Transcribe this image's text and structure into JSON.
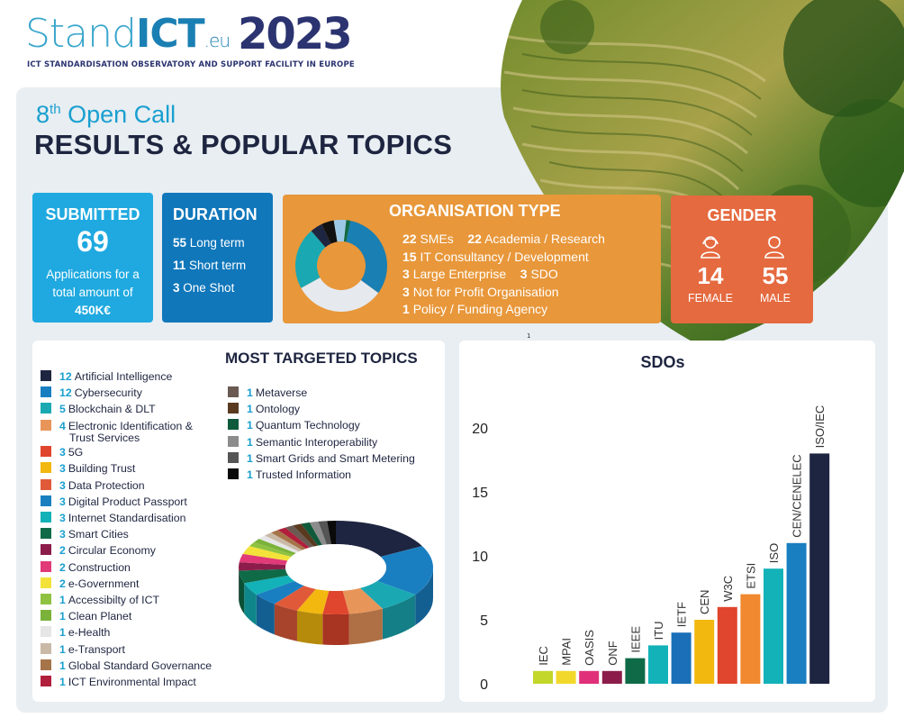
{
  "logo": {
    "stand": "Stand",
    "ict": "ICT",
    "eu": ".eu",
    "year": "2023",
    "subtitle": "ICT STANDARDISATION OBSERVATORY AND SUPPORT FACILITY IN EUROPE"
  },
  "header": {
    "call_ordinal": "8",
    "call_suffix": "th",
    "call_label": "Open Call",
    "title": "RESULTS & POPULAR TOPICS"
  },
  "submitted": {
    "heading": "SUBMITTED",
    "count": "69",
    "line1": "Applications for a",
    "line2": "total amount of",
    "amount": "450K€"
  },
  "duration": {
    "heading": "DURATION",
    "items": [
      {
        "n": "55",
        "label": "Long term"
      },
      {
        "n": "11",
        "label": "Short term"
      },
      {
        "n": "3",
        "label": " One Shot"
      }
    ]
  },
  "organisation": {
    "heading": "ORGANISATION TYPE",
    "rows": [
      [
        {
          "n": "22",
          "label": "SMEs"
        },
        {
          "n": "22",
          "label": "Academia / Research"
        }
      ],
      [
        {
          "n": "15",
          "label": "IT Consultancy / Development"
        }
      ],
      [
        {
          "n": "3",
          "label": "Large Enterprise"
        },
        {
          "n": "3",
          "label": "SDO"
        }
      ],
      [
        {
          "n": "3",
          "label": "Not for Profit Organisation"
        }
      ],
      [
        {
          "n": "1",
          "label": "Policy / Funding Agency"
        }
      ]
    ],
    "donut_colors": [
      "#1a7fb3",
      "#e6e9ee",
      "#1aa9b3",
      "#1e2540",
      "#111111",
      "#9ec9e6",
      "#0f6b47"
    ],
    "donut_values": [
      22,
      22,
      15,
      3,
      3,
      3,
      1
    ]
  },
  "gender": {
    "heading": "GENDER",
    "female_count": "14",
    "female_label": "FEMALE",
    "male_count": "55",
    "male_label": "MALE"
  },
  "topics": {
    "heading": "MOST TARGETED TOPICS",
    "left": [
      {
        "n": "12",
        "label": "Artificial Intelligence",
        "color": "#1e2540"
      },
      {
        "n": "12",
        "label": "Cybersecurity",
        "color": "#1a7fc1"
      },
      {
        "n": "5",
        "label": "Blockchain & DLT",
        "color": "#1aa9b3"
      },
      {
        "n": "4",
        "label": "Electronic Identification &",
        "label2": "Trust Services",
        "color": "#e8955a"
      },
      {
        "n": "3",
        "label": "5G",
        "color": "#e0452d"
      },
      {
        "n": "3",
        "label": "Building Trust",
        "color": "#f2b80f"
      },
      {
        "n": "3",
        "label": "Data Protection",
        "color": "#e05a3a"
      },
      {
        "n": "3",
        "label": "Digital Product Passport",
        "color": "#1a7fc1"
      },
      {
        "n": "3",
        "label": "Internet Standardisation",
        "color": "#13b2b8"
      },
      {
        "n": "3",
        "label": "Smart Cities",
        "color": "#0f6b47"
      },
      {
        "n": "2",
        "label": "Circular Economy",
        "color": "#8c1d4a"
      },
      {
        "n": "2",
        "label": "Construction",
        "color": "#e03a78"
      },
      {
        "n": "2",
        "label": "e-Government",
        "color": "#f3e23a"
      },
      {
        "n": "1",
        "label": "Accessibilty of ICT",
        "color": "#8fc241"
      },
      {
        "n": "1",
        "label": "Clean Planet",
        "color": "#7ab23a"
      },
      {
        "n": "1",
        "label": "e-Health",
        "color": "#e6e6e6"
      },
      {
        "n": "1",
        "label": "e-Transport",
        "color": "#c9b9a6"
      },
      {
        "n": "1",
        "label": "Global Standard Governance",
        "color": "#a67449"
      },
      {
        "n": "1",
        "label": "ICT Environmental Impact",
        "color": "#b01f3b"
      }
    ],
    "right": [
      {
        "n": "1",
        "label": "Metaverse",
        "color": "#6a5a52"
      },
      {
        "n": "1",
        "label": "Ontology",
        "color": "#5a3a1e"
      },
      {
        "n": "1",
        "label": "Quantum Technology",
        "color": "#0f5a3a"
      },
      {
        "n": "1",
        "label": "Semantic Interoperability",
        "color": "#8c8c8c"
      },
      {
        "n": "1",
        "label": "Smart Grids and Smart Metering",
        "color": "#555555"
      },
      {
        "n": "1",
        "label": "Trusted Information",
        "color": "#0a0a0a"
      }
    ]
  },
  "stray_mark": "1",
  "chart_data": {
    "type": "bar",
    "title": "SDOs",
    "categories": [
      "IEC",
      "MPAI",
      "OASIS",
      "ONF",
      "IEEE",
      "ITU",
      "IETF",
      "CEN",
      "W3C",
      "ETSI",
      "ISO",
      "CEN/CENELEC",
      "ISO/IEC"
    ],
    "values": [
      1,
      1,
      1,
      1,
      2,
      3,
      4,
      5,
      6,
      7,
      9,
      11,
      18
    ],
    "colors": [
      "#c3d62a",
      "#f2d82a",
      "#e0307a",
      "#8c1d4a",
      "#0f6b47",
      "#13b2b8",
      "#1a6fb8",
      "#f2b80f",
      "#e0452d",
      "#f0892f",
      "#13b2b8",
      "#1a7fc1",
      "#1e2540"
    ],
    "yticks": [
      0,
      5,
      10,
      15,
      20
    ],
    "ylim": [
      0,
      21
    ],
    "xlabel": "",
    "ylabel": "",
    "grid": false
  }
}
